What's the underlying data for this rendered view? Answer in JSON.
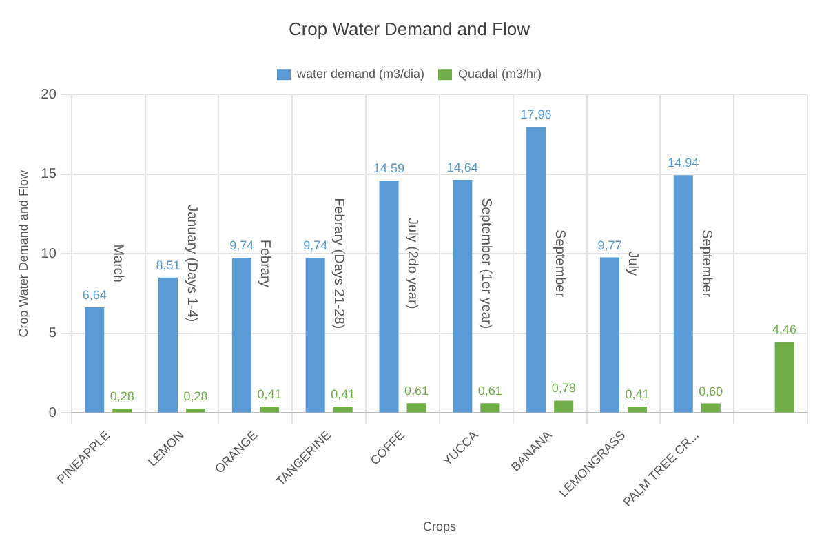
{
  "chart_data": {
    "type": "bar",
    "title": "Crop Water Demand and Flow",
    "xlabel": "Crops",
    "ylabel": "Crop Water Demand and Flow",
    "categories": [
      "PINEAPPLE",
      "LEMON",
      "ORANGE",
      "TANGERINE",
      "COFFE",
      "YUCCA",
      "BANANA",
      "LEMONGRASS",
      "PALM TREE CR...",
      null
    ],
    "series": [
      {
        "name": "water demand (m3/dia)",
        "color": "#5b9bd5",
        "values": [
          6.64,
          8.51,
          9.74,
          9.74,
          14.59,
          14.64,
          17.96,
          9.77,
          14.94,
          null
        ],
        "value_labels": [
          "6,64",
          "8,51",
          "9,74",
          "9,74",
          "14,59",
          "14,64",
          "17,96",
          "9,77",
          "14,94",
          null
        ]
      },
      {
        "name": "Quadal (m3/hr)",
        "color": "#70ad47",
        "values": [
          0.28,
          0.28,
          0.41,
          0.41,
          0.61,
          0.61,
          0.78,
          0.41,
          0.6,
          4.46
        ],
        "value_labels": [
          "0,28",
          "0,28",
          "0,41",
          "0,41",
          "0,61",
          "0,61",
          "0,78",
          "0,41",
          "0,60",
          "4,46"
        ]
      }
    ],
    "ylim": [
      0,
      20
    ],
    "yticks": [
      0,
      5,
      10,
      15,
      20
    ],
    "grid": true,
    "legend": "top",
    "annotations": [
      "March",
      "January (Days 1-4)",
      "Febrary",
      "Febrary (Days 21-28)",
      "July (2do year)",
      "September (1er year)",
      "September",
      "July",
      "September"
    ]
  }
}
